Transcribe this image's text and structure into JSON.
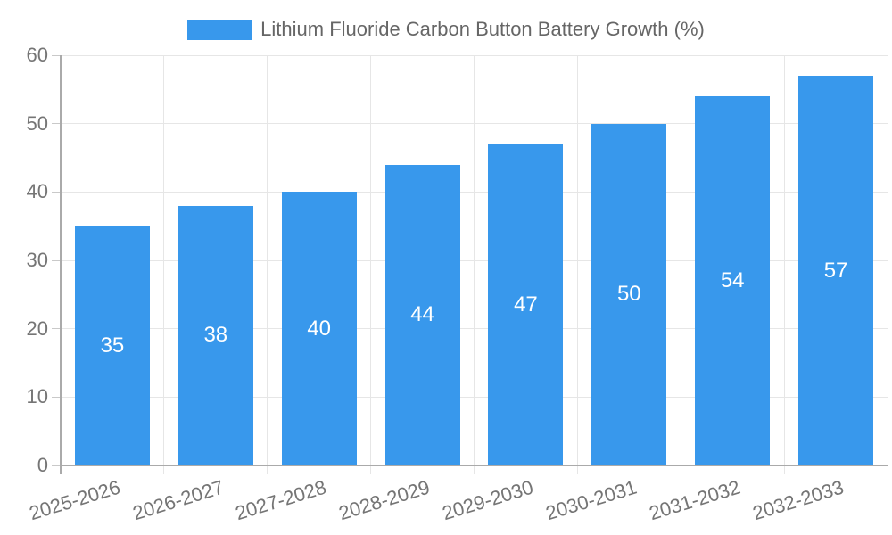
{
  "chart_data": {
    "type": "bar",
    "title": "Lithium Fluoride Carbon Button Battery Growth (%)",
    "legend": {
      "position": "top",
      "label": "Lithium Fluoride Carbon Button Battery Growth (%)"
    },
    "categories": [
      "2025-2026",
      "2026-2027",
      "2027-2028",
      "2028-2029",
      "2029-2030",
      "2030-2031",
      "2031-2032",
      "2032-2033"
    ],
    "values": [
      35,
      38,
      40,
      44,
      47,
      50,
      54,
      57
    ],
    "bar_value_labels": [
      "35",
      "38",
      "40",
      "44",
      "47",
      "50",
      "54",
      "57"
    ],
    "xlabel": "",
    "ylabel": "",
    "ylim": [
      0,
      60
    ],
    "yticks": [
      0,
      10,
      20,
      30,
      40,
      50,
      60
    ],
    "ytick_labels": [
      "0",
      "10",
      "20",
      "30",
      "40",
      "50",
      "60"
    ],
    "grid": "on",
    "colors": {
      "bar": "#3898ec",
      "bar_value_label": "#ffffff",
      "grid_line": "#e6e6e6",
      "axis_line": "#aaaaaa",
      "tick_mark": "#c9c9c9",
      "tick_text": "#757575",
      "legend_text": "#666666",
      "background": "#ffffff"
    }
  }
}
